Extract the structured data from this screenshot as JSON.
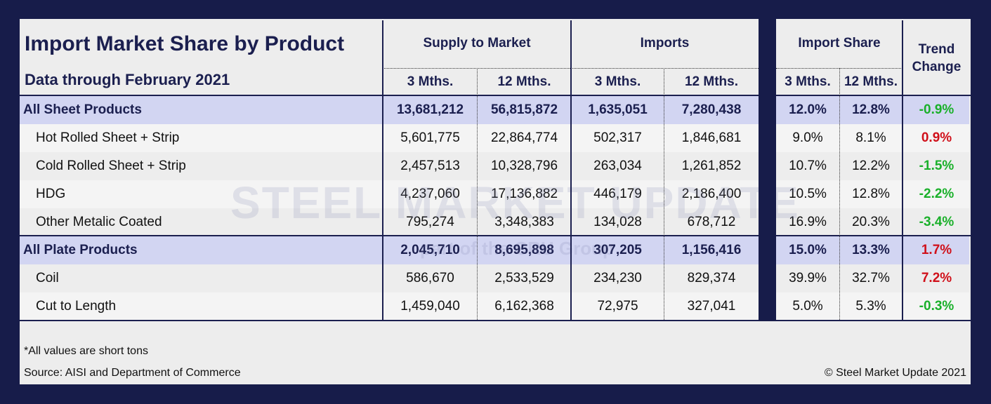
{
  "title": "Import Market Share by Product",
  "subtitle": "Data through February 2021",
  "groups": {
    "supply": "Supply to Market",
    "imports": "Imports",
    "share": "Import Share",
    "trend": "Trend Change"
  },
  "sub": {
    "m3": "3 Mths.",
    "m12": "12 Mths."
  },
  "rows": [
    {
      "label": "All Sheet Products",
      "s3": "13,681,212",
      "s12": "56,815,872",
      "i3": "1,635,051",
      "i12": "7,280,438",
      "sh3": "12.0%",
      "sh12": "12.8%",
      "trend": "-0.9%",
      "summary": true
    },
    {
      "label": "Hot Rolled Sheet + Strip",
      "s3": "5,601,775",
      "s12": "22,864,774",
      "i3": "502,317",
      "i12": "1,846,681",
      "sh3": "9.0%",
      "sh12": "8.1%",
      "trend": "0.9%"
    },
    {
      "label": "Cold Rolled Sheet + Strip",
      "s3": "2,457,513",
      "s12": "10,328,796",
      "i3": "263,034",
      "i12": "1,261,852",
      "sh3": "10.7%",
      "sh12": "12.2%",
      "trend": "-1.5%"
    },
    {
      "label": "HDG",
      "s3": "4,237,060",
      "s12": "17,136,882",
      "i3": "446,179",
      "i12": "2,186,400",
      "sh3": "10.5%",
      "sh12": "12.8%",
      "trend": "-2.2%"
    },
    {
      "label": "Other Metalic Coated",
      "s3": "795,274",
      "s12": "3,348,383",
      "i3": "134,028",
      "i12": "678,712",
      "sh3": "16.9%",
      "sh12": "20.3%",
      "trend": "-3.4%"
    },
    {
      "label": "All Plate Products",
      "s3": "2,045,710",
      "s12": "8,695,898",
      "i3": "307,205",
      "i12": "1,156,416",
      "sh3": "15.0%",
      "sh12": "13.3%",
      "trend": "1.7%",
      "summary": true
    },
    {
      "label": "Coil",
      "s3": "586,670",
      "s12": "2,533,529",
      "i3": "234,230",
      "i12": "829,374",
      "sh3": "39.9%",
      "sh12": "32.7%",
      "trend": "7.2%"
    },
    {
      "label": "Cut to Length",
      "s3": "1,459,040",
      "s12": "6,162,368",
      "i3": "72,975",
      "i12": "327,041",
      "sh3": "5.0%",
      "sh12": "5.3%",
      "trend": "-0.3%"
    }
  ],
  "watermark": "STEEL MARKET UPDATE",
  "watermark_sub": "part of the CRU Group",
  "footer": {
    "note": "*All values are short tons",
    "source": "Source: AISI and Department of Commerce",
    "copyright": "© Steel Market Update 2021"
  },
  "colors": {
    "frame": "#171c4a",
    "summary_band": "#d2d5f2",
    "negative": "#1ab02a",
    "positive": "#d0101a"
  }
}
